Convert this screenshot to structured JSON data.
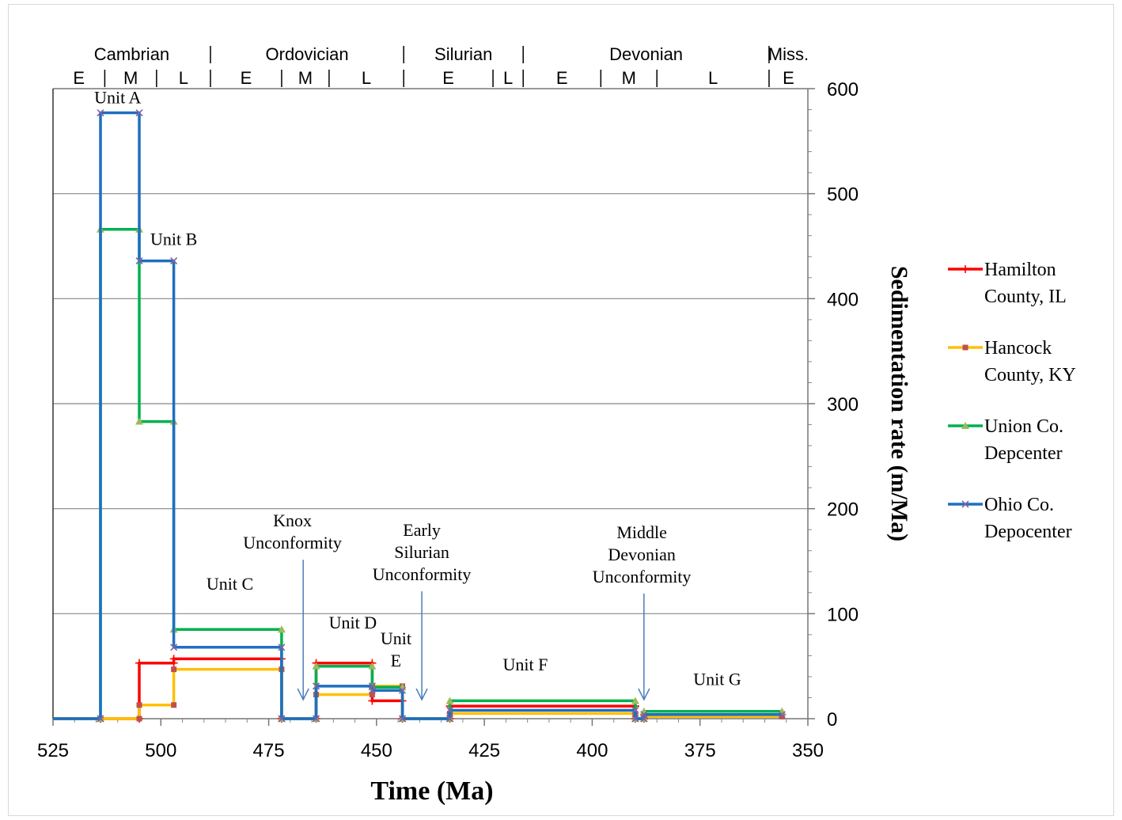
{
  "chart_data": {
    "type": "line",
    "xlabel": "Time (Ma)",
    "ylabel": "Sedimentation rate (m/Ma)",
    "xlim": [
      525,
      350
    ],
    "ylim": [
      0,
      600
    ],
    "x_ticks": [
      "525",
      "500",
      "475",
      "450",
      "425",
      "400",
      "375",
      "350"
    ],
    "y_ticks": [
      "0",
      "100",
      "200",
      "300",
      "400",
      "500",
      "600"
    ],
    "grid": "horizontal",
    "y_axis_side": "right",
    "legend_position": "right",
    "periods": [
      {
        "name": "Cambrian",
        "start": 525,
        "end": 488.5
      },
      {
        "name": "Ordovician",
        "start": 488.5,
        "end": 443.7
      },
      {
        "name": "Silurian",
        "start": 443.7,
        "end": 416
      },
      {
        "name": "Devonian",
        "start": 416,
        "end": 359
      },
      {
        "name": "Miss.",
        "start": 359,
        "end": 350
      }
    ],
    "epochs": [
      {
        "name": "E",
        "start": 525,
        "end": 513
      },
      {
        "name": "M",
        "start": 513,
        "end": 501
      },
      {
        "name": "L",
        "start": 501,
        "end": 488.5
      },
      {
        "name": "E",
        "start": 488.5,
        "end": 472
      },
      {
        "name": "M",
        "start": 472,
        "end": 461
      },
      {
        "name": "L",
        "start": 461,
        "end": 443.7
      },
      {
        "name": "E",
        "start": 443.7,
        "end": 423
      },
      {
        "name": "L",
        "start": 423,
        "end": 416
      },
      {
        "name": "E",
        "start": 416,
        "end": 398
      },
      {
        "name": "M",
        "start": 398,
        "end": 385
      },
      {
        "name": "L",
        "start": 385,
        "end": 359
      },
      {
        "name": "E",
        "start": 359,
        "end": 350
      }
    ],
    "series": [
      {
        "name": "Hamilton County, IL",
        "color": "#ff0000",
        "marker": "plus",
        "x": [
          525,
          514,
          514,
          505,
          505,
          497,
          497,
          472,
          472,
          464,
          464,
          451,
          451,
          444,
          444,
          433,
          433,
          390,
          390,
          388,
          388,
          356
        ],
        "y": [
          0,
          0,
          0,
          0,
          53,
          53,
          57,
          57,
          0,
          0,
          53,
          53,
          17,
          17,
          0,
          0,
          12,
          12,
          0,
          0,
          4,
          4
        ]
      },
      {
        "name": "Hancock County, KY",
        "color": "#ffc000",
        "marker": "square",
        "x": [
          525,
          514,
          514,
          505,
          505,
          497,
          497,
          472,
          472,
          464,
          464,
          451,
          451,
          444,
          444,
          433,
          433,
          390,
          390,
          388,
          388,
          356
        ],
        "y": [
          0,
          0,
          0,
          0,
          13,
          13,
          47,
          47,
          0,
          0,
          23,
          23,
          31,
          31,
          0,
          0,
          5,
          5,
          0,
          0,
          2,
          2
        ]
      },
      {
        "name": "Union Co. Depcenter",
        "color": "#00b050",
        "marker": "triangle",
        "x": [
          525,
          514,
          514,
          505,
          505,
          497,
          497,
          472,
          472,
          464,
          464,
          451,
          451,
          444,
          444,
          433,
          433,
          390,
          390,
          388,
          388,
          356
        ],
        "y": [
          0,
          0,
          466,
          466,
          283,
          283,
          85,
          85,
          0,
          0,
          50,
          50,
          30,
          30,
          0,
          0,
          17,
          17,
          0,
          0,
          7,
          7
        ]
      },
      {
        "name": "Ohio Co. Depocenter",
        "color": "#1f6fbf",
        "marker": "cross",
        "x": [
          525,
          514,
          514,
          505,
          505,
          497,
          497,
          472,
          472,
          464,
          464,
          451,
          451,
          444,
          444,
          433,
          433,
          390,
          390,
          388,
          388,
          356
        ],
        "y": [
          0,
          0,
          577,
          577,
          436,
          436,
          68,
          68,
          0,
          0,
          31,
          31,
          27,
          27,
          0,
          0,
          8,
          8,
          0,
          0,
          4,
          4
        ]
      }
    ],
    "legend": [
      {
        "line1": "Hamilton",
        "line2": "County, IL"
      },
      {
        "line1": "Hancock",
        "line2": "County, KY"
      },
      {
        "line1": "Union Co.",
        "line2": "Depcenter"
      },
      {
        "line1": "Ohio Co.",
        "line2": "Depocenter"
      }
    ],
    "annotations": [
      {
        "lines": [
          "Unit A"
        ],
        "x": 510,
        "y": 586
      },
      {
        "lines": [
          "Unit B"
        ],
        "x": 497,
        "y": 451
      },
      {
        "lines": [
          "Unit C"
        ],
        "x": 484,
        "y": 123
      },
      {
        "lines": [
          "Unit D"
        ],
        "x": 455.5,
        "y": 86
      },
      {
        "lines": [
          "Unit",
          "E"
        ],
        "x": 445.5,
        "y": 71
      },
      {
        "lines": [
          "Unit F"
        ],
        "x": 415.5,
        "y": 46
      },
      {
        "lines": [
          "Unit G"
        ],
        "x": 371,
        "y": 32
      },
      {
        "lines": [
          "Knox",
          "Unconformity"
        ],
        "x": 469.5,
        "y": 183,
        "arrow_to": 467
      },
      {
        "lines": [
          "Early",
          "Silurian",
          "Unconformity"
        ],
        "x": 439.5,
        "y": 174,
        "arrow_to": 439.5
      },
      {
        "lines": [
          "Middle",
          "Devonian",
          "Unconformity"
        ],
        "x": 388.5,
        "y": 172,
        "arrow_to": 388
      }
    ]
  }
}
